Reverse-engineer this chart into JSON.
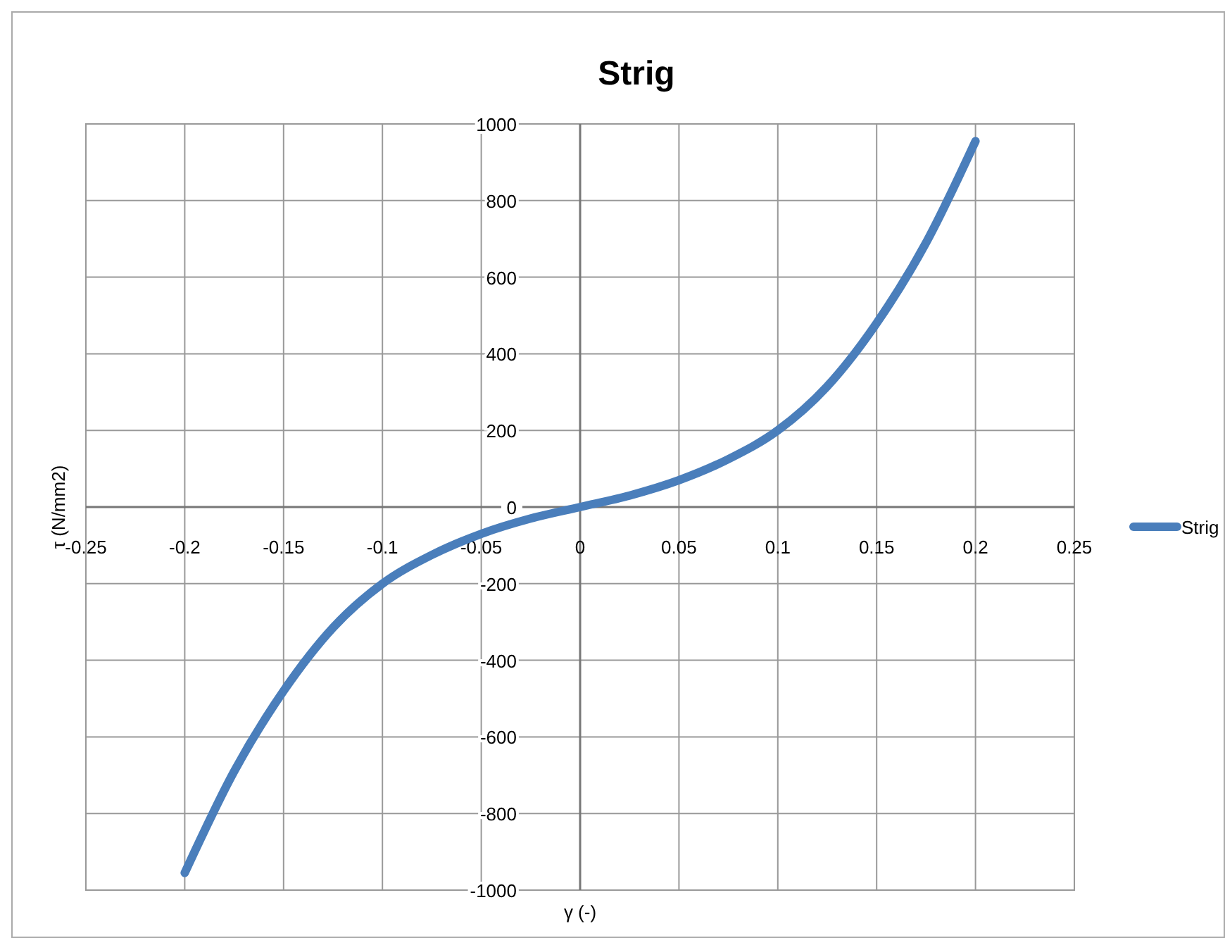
{
  "chart_data": {
    "type": "line",
    "title": "Strig",
    "xlabel": "γ (-)",
    "ylabel": "τ (N/mm2)",
    "x": [
      -0.2,
      -0.175,
      -0.15,
      -0.125,
      -0.1,
      -0.075,
      -0.05,
      -0.025,
      0,
      0.025,
      0.05,
      0.075,
      0.1,
      0.125,
      0.15,
      0.175,
      0.2
    ],
    "series": [
      {
        "name": "Strig",
        "color": "#4a7ebb",
        "values": [
          -955,
          -690,
          -480,
          -315,
          -200,
          -125,
          -70,
          -30,
          0,
          30,
          70,
          125,
          200,
          315,
          480,
          690,
          955
        ]
      }
    ],
    "xlim": [
      -0.25,
      0.25
    ],
    "xticks": [
      -0.25,
      -0.2,
      -0.15,
      -0.1,
      -0.05,
      0,
      0.05,
      0.1,
      0.15,
      0.2,
      0.25
    ],
    "ylim": [
      -1000,
      1000
    ],
    "yticks": [
      -1000,
      -800,
      -600,
      -400,
      -200,
      0,
      200,
      400,
      600,
      800,
      1000
    ],
    "grid": true,
    "legend": "right",
    "marker": "none",
    "line_style": "solid"
  }
}
